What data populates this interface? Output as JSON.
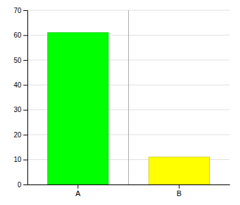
{
  "chart_data": {
    "type": "bar",
    "categories": [
      "A",
      "B"
    ],
    "values": [
      61,
      11
    ],
    "colors": [
      "#00ff00",
      "#ffff00"
    ],
    "ylim": [
      0,
      70
    ],
    "yticks": [
      0,
      10,
      20,
      30,
      40,
      50,
      60,
      70
    ],
    "grid": true
  }
}
